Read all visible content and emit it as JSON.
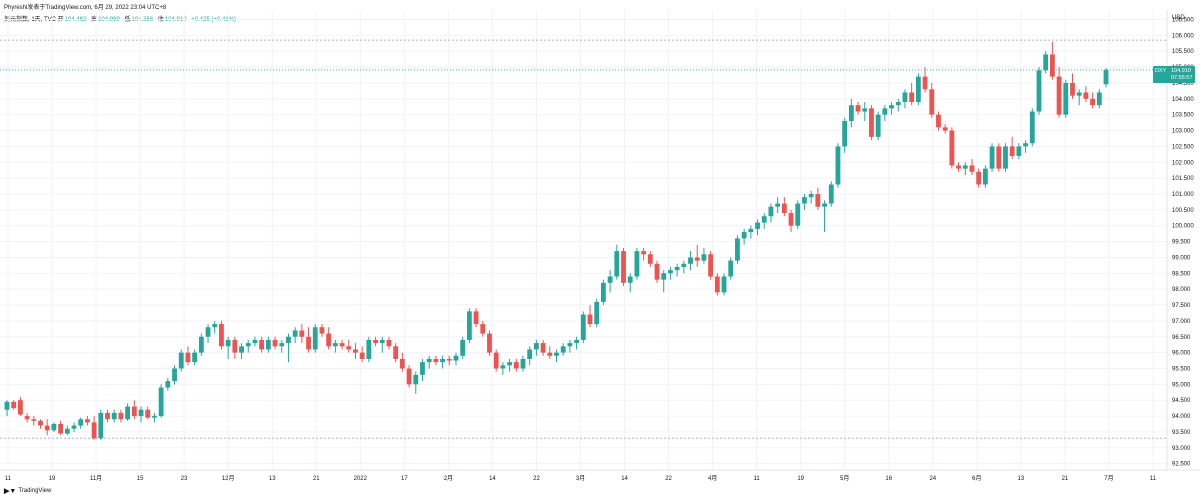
{
  "header": {
    "author": "Phyreshl发表于TradingView.com,",
    "timestamp": "6月 29, 2022 23:04 UTC+8",
    "symbol": "美元指数, 1天, TVC",
    "open_label": "开",
    "open": "104.462",
    "high_label": "高",
    "high": "104.969",
    "low_label": "低",
    "low": "104.356",
    "close_label": "收",
    "close": "104.910",
    "change": "+0.425 (+0.41%)"
  },
  "price_tag": {
    "symbol": "DXY",
    "price": "104.910",
    "countdown": "07:55:57"
  },
  "currency": "USD",
  "footer": {
    "brand": "TradingView",
    "logo_icon": "tradingview-logo-icon"
  },
  "chart_data": {
    "type": "candlestick",
    "y_ticks": [
      "106.500",
      "106.000",
      "105.500",
      "105.000",
      "104.500",
      "104.000",
      "103.500",
      "103.000",
      "102.500",
      "102.000",
      "101.500",
      "101.000",
      "100.500",
      "100.000",
      "99.500",
      "99.000",
      "98.500",
      "98.000",
      "97.500",
      "97.000",
      "96.500",
      "96.000",
      "95.500",
      "95.000",
      "94.500",
      "94.000",
      "93.500",
      "93.000",
      "92.500"
    ],
    "x_ticks": [
      "11",
      "19",
      "11月",
      "15",
      "23",
      "12月",
      "13",
      "21",
      "2022",
      "17",
      "2月",
      "14",
      "22",
      "3月",
      "14",
      "22",
      "4月",
      "11",
      "19",
      "5月",
      "16",
      "24",
      "6月",
      "13",
      "21",
      "7月",
      "11"
    ],
    "ylim": [
      92.3,
      106.8
    ],
    "colors": {
      "up": "#26a69a",
      "down": "#ef5350",
      "hline": "#b2b5be",
      "price_line": "#26a69a"
    },
    "h_lines": [
      105.85,
      93.3
    ],
    "current_price": 104.91,
    "candles": [
      [
        94.2,
        94.5,
        94.0,
        94.45
      ],
      [
        94.45,
        94.5,
        94.2,
        94.25
      ],
      [
        94.5,
        94.6,
        94.0,
        94.05
      ],
      [
        94.0,
        94.1,
        93.8,
        93.9
      ],
      [
        93.9,
        94.0,
        93.7,
        93.85
      ],
      [
        93.85,
        93.9,
        93.6,
        93.7
      ],
      [
        93.7,
        93.9,
        93.4,
        93.55
      ],
      [
        93.55,
        93.8,
        93.5,
        93.75
      ],
      [
        93.75,
        93.85,
        93.4,
        93.45
      ],
      [
        93.45,
        93.7,
        93.4,
        93.6
      ],
      [
        93.6,
        93.8,
        93.5,
        93.7
      ],
      [
        93.7,
        93.95,
        93.6,
        93.9
      ],
      [
        93.9,
        94.0,
        93.7,
        93.8
      ],
      [
        93.8,
        94.0,
        93.25,
        93.3
      ],
      [
        93.3,
        94.2,
        93.25,
        94.1
      ],
      [
        94.1,
        94.2,
        93.8,
        93.9
      ],
      [
        93.9,
        94.2,
        93.8,
        94.1
      ],
      [
        94.1,
        94.2,
        93.8,
        93.9
      ],
      [
        93.9,
        94.4,
        93.85,
        94.3
      ],
      [
        94.3,
        94.5,
        93.9,
        94.0
      ],
      [
        94.0,
        94.3,
        93.8,
        94.2
      ],
      [
        94.2,
        94.3,
        93.9,
        93.95
      ],
      [
        93.95,
        94.1,
        93.8,
        94.0
      ],
      [
        94.0,
        95.0,
        93.95,
        94.9
      ],
      [
        94.9,
        95.2,
        94.8,
        95.1
      ],
      [
        95.1,
        95.6,
        95.0,
        95.5
      ],
      [
        95.5,
        96.1,
        95.4,
        96.0
      ],
      [
        96.0,
        96.2,
        95.6,
        95.7
      ],
      [
        95.7,
        96.1,
        95.6,
        96.0
      ],
      [
        96.0,
        96.6,
        95.9,
        96.5
      ],
      [
        96.5,
        96.9,
        96.3,
        96.8
      ],
      [
        96.8,
        97.0,
        96.6,
        96.9
      ],
      [
        96.9,
        97.0,
        96.1,
        96.2
      ],
      [
        96.2,
        96.5,
        95.8,
        96.4
      ],
      [
        96.4,
        96.5,
        95.8,
        96.0
      ],
      [
        96.0,
        96.3,
        95.8,
        96.2
      ],
      [
        96.2,
        96.4,
        96.0,
        96.3
      ],
      [
        96.3,
        96.5,
        96.2,
        96.4
      ],
      [
        96.4,
        96.5,
        96.0,
        96.1
      ],
      [
        96.1,
        96.5,
        96.0,
        96.4
      ],
      [
        96.4,
        96.5,
        96.1,
        96.2
      ],
      [
        96.2,
        96.4,
        96.0,
        96.3
      ],
      [
        96.3,
        96.6,
        95.7,
        96.5
      ],
      [
        96.5,
        96.8,
        96.3,
        96.7
      ],
      [
        96.7,
        96.9,
        96.3,
        96.5
      ],
      [
        96.5,
        96.8,
        96.0,
        96.1
      ],
      [
        96.1,
        96.9,
        96.0,
        96.8
      ],
      [
        96.8,
        96.9,
        96.5,
        96.6
      ],
      [
        96.6,
        96.8,
        96.1,
        96.2
      ],
      [
        96.2,
        96.4,
        96.0,
        96.3
      ],
      [
        96.3,
        96.4,
        96.1,
        96.2
      ],
      [
        96.2,
        96.4,
        96.0,
        96.1
      ],
      [
        96.1,
        96.3,
        95.8,
        96.0
      ],
      [
        96.0,
        96.2,
        95.7,
        95.8
      ],
      [
        95.8,
        96.5,
        95.7,
        96.4
      ],
      [
        96.4,
        96.5,
        96.2,
        96.3
      ],
      [
        96.3,
        96.5,
        96.0,
        96.4
      ],
      [
        96.4,
        96.5,
        96.1,
        96.2
      ],
      [
        96.2,
        96.3,
        95.7,
        95.8
      ],
      [
        95.8,
        96.0,
        95.4,
        95.5
      ],
      [
        95.5,
        95.6,
        94.9,
        95.0
      ],
      [
        95.0,
        95.4,
        94.7,
        95.3
      ],
      [
        95.3,
        95.8,
        95.1,
        95.7
      ],
      [
        95.7,
        95.9,
        95.5,
        95.8
      ],
      [
        95.8,
        95.9,
        95.6,
        95.7
      ],
      [
        95.7,
        95.9,
        95.5,
        95.8
      ],
      [
        95.8,
        95.9,
        95.6,
        95.75
      ],
      [
        95.75,
        96.0,
        95.6,
        95.9
      ],
      [
        95.9,
        96.5,
        95.8,
        96.4
      ],
      [
        96.4,
        97.4,
        96.3,
        97.3
      ],
      [
        97.3,
        97.4,
        96.8,
        96.9
      ],
      [
        96.9,
        97.0,
        96.5,
        96.6
      ],
      [
        96.6,
        96.7,
        95.9,
        96.0
      ],
      [
        96.0,
        96.1,
        95.4,
        95.5
      ],
      [
        95.5,
        95.7,
        95.3,
        95.6
      ],
      [
        95.6,
        95.8,
        95.4,
        95.7
      ],
      [
        95.7,
        95.8,
        95.4,
        95.5
      ],
      [
        95.5,
        95.9,
        95.4,
        95.8
      ],
      [
        95.8,
        96.2,
        95.6,
        96.1
      ],
      [
        96.1,
        96.4,
        95.9,
        96.3
      ],
      [
        96.3,
        96.4,
        95.9,
        96.0
      ],
      [
        96.0,
        96.2,
        95.8,
        95.9
      ],
      [
        95.9,
        96.1,
        95.7,
        96.0
      ],
      [
        96.0,
        96.3,
        95.9,
        96.2
      ],
      [
        96.2,
        96.4,
        96.0,
        96.3
      ],
      [
        96.3,
        96.5,
        96.1,
        96.4
      ],
      [
        96.4,
        97.3,
        96.3,
        97.2
      ],
      [
        97.2,
        97.5,
        96.8,
        96.9
      ],
      [
        96.9,
        97.7,
        96.8,
        97.6
      ],
      [
        97.6,
        98.3,
        97.5,
        98.2
      ],
      [
        98.2,
        98.6,
        97.9,
        98.4
      ],
      [
        98.4,
        99.4,
        98.3,
        99.2
      ],
      [
        99.2,
        99.3,
        98.1,
        98.2
      ],
      [
        98.2,
        98.5,
        97.9,
        98.4
      ],
      [
        98.4,
        99.3,
        98.3,
        99.2
      ],
      [
        99.2,
        99.3,
        98.9,
        99.1
      ],
      [
        99.1,
        99.2,
        98.7,
        98.8
      ],
      [
        98.8,
        98.9,
        98.2,
        98.3
      ],
      [
        98.3,
        98.6,
        97.9,
        98.5
      ],
      [
        98.5,
        98.7,
        98.3,
        98.6
      ],
      [
        98.6,
        98.8,
        98.4,
        98.7
      ],
      [
        98.7,
        98.9,
        98.5,
        98.8
      ],
      [
        98.8,
        99.2,
        98.6,
        99.0
      ],
      [
        99.0,
        99.4,
        98.7,
        98.9
      ],
      [
        98.9,
        99.3,
        98.8,
        99.1
      ],
      [
        99.1,
        99.2,
        98.3,
        98.4
      ],
      [
        98.4,
        98.5,
        97.8,
        97.9
      ],
      [
        97.9,
        98.5,
        97.8,
        98.4
      ],
      [
        98.4,
        99.0,
        98.3,
        98.9
      ],
      [
        98.9,
        99.7,
        98.8,
        99.6
      ],
      [
        99.6,
        99.9,
        99.4,
        99.8
      ],
      [
        99.8,
        100.0,
        99.6,
        99.9
      ],
      [
        99.9,
        100.2,
        99.7,
        100.1
      ],
      [
        100.1,
        100.4,
        99.9,
        100.3
      ],
      [
        100.3,
        100.7,
        100.1,
        100.6
      ],
      [
        100.6,
        100.9,
        100.4,
        100.7
      ],
      [
        100.7,
        100.9,
        100.3,
        100.4
      ],
      [
        100.4,
        100.5,
        99.8,
        100.0
      ],
      [
        100.0,
        100.8,
        99.9,
        100.7
      ],
      [
        100.7,
        101.0,
        100.5,
        100.9
      ],
      [
        100.9,
        101.1,
        100.7,
        101.0
      ],
      [
        101.0,
        101.2,
        100.5,
        100.6
      ],
      [
        100.6,
        100.8,
        99.8,
        100.7
      ],
      [
        100.7,
        101.4,
        100.6,
        101.3
      ],
      [
        101.3,
        102.6,
        101.2,
        102.5
      ],
      [
        102.5,
        103.4,
        102.3,
        103.3
      ],
      [
        103.3,
        104.0,
        103.1,
        103.8
      ],
      [
        103.8,
        103.9,
        103.5,
        103.6
      ],
      [
        103.6,
        103.9,
        103.3,
        103.7
      ],
      [
        103.7,
        103.8,
        102.7,
        102.8
      ],
      [
        102.8,
        103.6,
        102.7,
        103.5
      ],
      [
        103.5,
        103.8,
        103.3,
        103.7
      ],
      [
        103.7,
        103.9,
        103.5,
        103.8
      ],
      [
        103.8,
        104.0,
        103.6,
        103.9
      ],
      [
        103.9,
        104.3,
        103.7,
        104.2
      ],
      [
        104.2,
        104.5,
        103.8,
        103.9
      ],
      [
        103.9,
        104.8,
        103.8,
        104.7
      ],
      [
        104.7,
        105.0,
        104.2,
        104.3
      ],
      [
        104.3,
        104.5,
        103.4,
        103.5
      ],
      [
        103.5,
        103.6,
        103.0,
        103.1
      ],
      [
        103.1,
        103.2,
        102.9,
        103.0
      ],
      [
        103.0,
        103.1,
        101.8,
        101.9
      ],
      [
        101.9,
        102.0,
        101.7,
        101.8
      ],
      [
        101.8,
        102.0,
        101.6,
        101.9
      ],
      [
        101.9,
        102.1,
        101.6,
        101.7
      ],
      [
        101.7,
        101.8,
        101.2,
        101.3
      ],
      [
        101.3,
        101.9,
        101.2,
        101.8
      ],
      [
        101.8,
        102.6,
        101.7,
        102.5
      ],
      [
        102.5,
        102.6,
        101.7,
        101.8
      ],
      [
        101.8,
        102.6,
        101.7,
        102.5
      ],
      [
        102.5,
        102.8,
        102.1,
        102.2
      ],
      [
        102.2,
        102.6,
        102.1,
        102.5
      ],
      [
        102.5,
        102.7,
        102.3,
        102.6
      ],
      [
        102.6,
        103.7,
        102.5,
        103.6
      ],
      [
        103.6,
        105.0,
        103.5,
        104.9
      ],
      [
        104.9,
        105.5,
        104.8,
        105.4
      ],
      [
        105.4,
        105.8,
        104.6,
        104.7
      ],
      [
        104.7,
        105.0,
        103.4,
        103.5
      ],
      [
        103.5,
        104.6,
        103.4,
        104.5
      ],
      [
        104.5,
        104.8,
        104.0,
        104.1
      ],
      [
        104.1,
        104.3,
        103.8,
        104.2
      ],
      [
        104.2,
        104.4,
        103.9,
        104.0
      ],
      [
        104.0,
        104.2,
        103.7,
        103.8
      ],
      [
        103.8,
        104.3,
        103.7,
        104.2
      ],
      [
        104.46,
        104.97,
        104.36,
        104.91
      ]
    ]
  }
}
